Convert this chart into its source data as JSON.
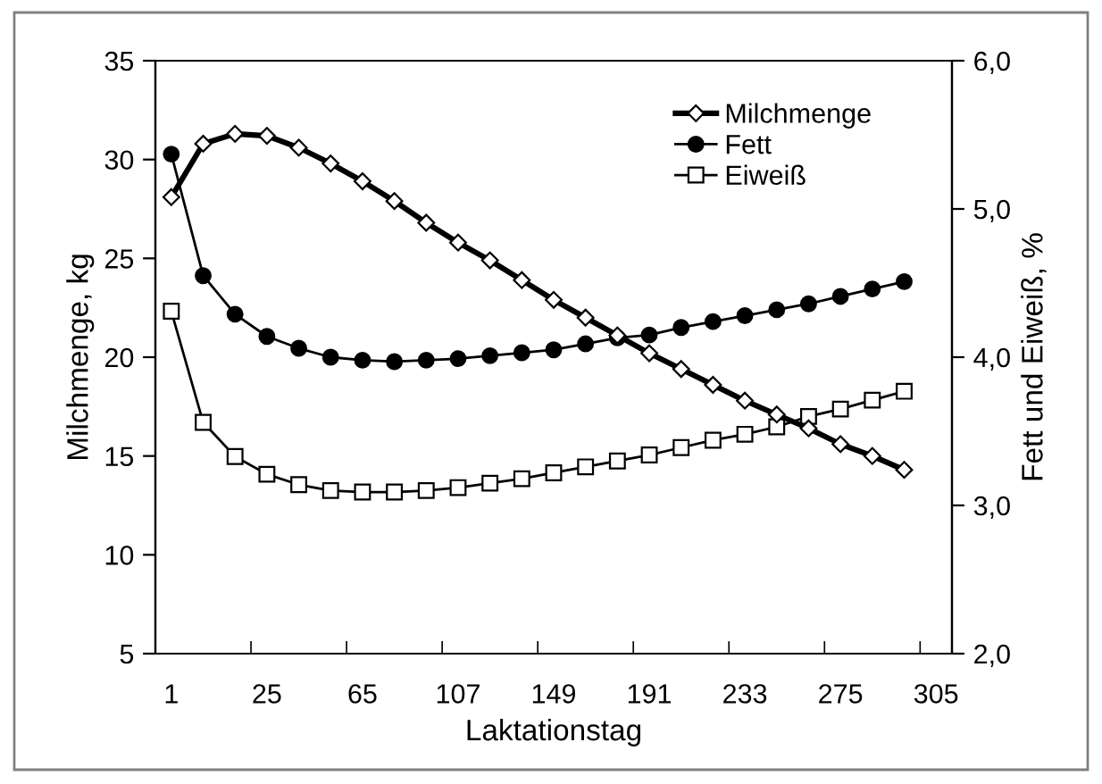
{
  "chart_data": {
    "type": "line",
    "xlabel": "Laktationstag",
    "ylabel": "Milchmenge, kg",
    "y2label": "Fett und Eiweiß, %",
    "categories": [
      "1",
      null,
      null,
      "25",
      null,
      null,
      "65",
      null,
      null,
      "107",
      null,
      null,
      "149",
      null,
      null,
      "191",
      null,
      null,
      "233",
      null,
      null,
      "275",
      null,
      null,
      "305"
    ],
    "ylim": [
      5,
      35
    ],
    "yticks": [
      5,
      10,
      15,
      20,
      25,
      30,
      35
    ],
    "y2lim": [
      2,
      6
    ],
    "y2ticks": [
      {
        "value": 2,
        "label": "2,0"
      },
      {
        "value": 3,
        "label": "3,0"
      },
      {
        "value": 4,
        "label": "4,0"
      },
      {
        "value": 5,
        "label": "5,0"
      },
      {
        "value": 6,
        "label": "6,0"
      }
    ],
    "legend": "top right",
    "grid": false,
    "series": [
      {
        "name": "Milchmenge",
        "color": "#000000",
        "marker": "diamond",
        "values": [
          28.1,
          30.8,
          31.3,
          31.2,
          30.6,
          29.8,
          28.9,
          27.9,
          26.8,
          25.8,
          24.9,
          23.9,
          22.9,
          22.0,
          21.1,
          20.2,
          19.4,
          18.6,
          17.8,
          17.1,
          16.4,
          15.6,
          15.0,
          14.3,
          null
        ]
      },
      {
        "name": "Fett",
        "color": "#000000",
        "marker": "circle",
        "axis": "y2",
        "values": [
          5.37,
          4.55,
          4.29,
          4.14,
          4.06,
          4.0,
          3.98,
          3.97,
          3.98,
          3.99,
          4.01,
          4.03,
          4.05,
          4.09,
          4.13,
          4.15,
          4.2,
          4.24,
          4.28,
          4.32,
          4.36,
          4.41,
          4.46,
          4.51,
          null
        ]
      },
      {
        "name": "Eiweiß",
        "color": "#000000",
        "marker": "square",
        "axis": "y2",
        "values": [
          4.31,
          3.56,
          3.33,
          3.21,
          3.14,
          3.1,
          3.09,
          3.09,
          3.1,
          3.12,
          3.15,
          3.18,
          3.22,
          3.26,
          3.3,
          3.34,
          3.39,
          3.44,
          3.48,
          3.53,
          3.6,
          3.65,
          3.71,
          3.77,
          null
        ]
      }
    ]
  }
}
